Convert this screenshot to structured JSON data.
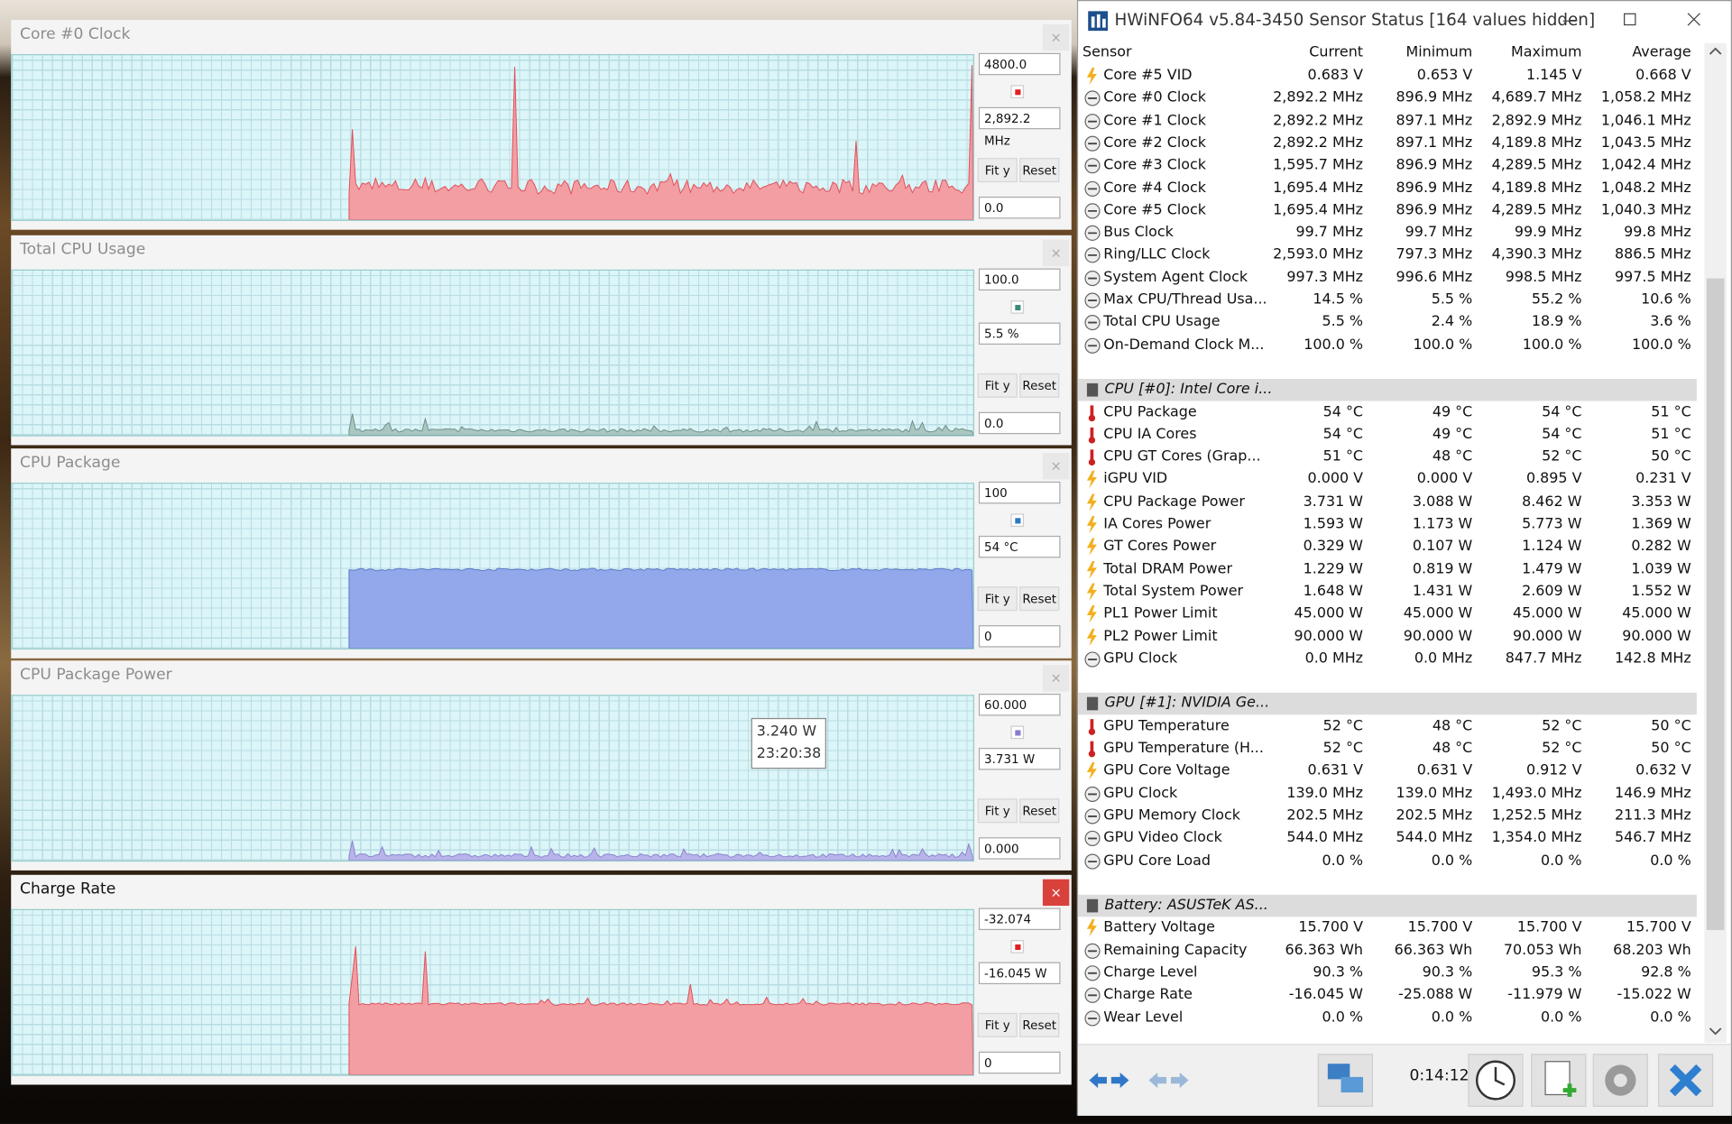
{
  "graphs": [
    {
      "title": "Core #0 Clock",
      "top": "4800.0",
      "current": "2,892.2 MHz",
      "bottom": "0.0",
      "fit": "Fit y",
      "reset": "Reset",
      "close": "×"
    },
    {
      "title": "Total CPU Usage",
      "top": "100.0",
      "current": "5.5 %",
      "bottom": "0.0",
      "fit": "Fit y",
      "reset": "Reset",
      "close": "×"
    },
    {
      "title": "CPU Package",
      "top": "100",
      "current": "54 °C",
      "bottom": "0",
      "fit": "Fit y",
      "reset": "Reset",
      "close": "×"
    },
    {
      "title": "CPU Package Power",
      "top": "60.000",
      "current": "3.731 W",
      "bottom": "0.000",
      "fit": "Fit y",
      "reset": "Reset",
      "close": "×",
      "tooltip": {
        "value": "3.240 W",
        "time": "23:20:38"
      }
    },
    {
      "title": "Charge Rate",
      "top": "-32.074",
      "current": "-16.045 W",
      "bottom": "0",
      "fit": "Fit y",
      "reset": "Reset",
      "close": "×"
    }
  ],
  "sensor_window": {
    "title": "HWiNFO64 v5.84-3450 Sensor Status [164 values hidden]",
    "columns": [
      "Sensor",
      "Current",
      "Minimum",
      "Maximum",
      "Average"
    ],
    "groups": [
      {
        "rows": [
          [
            "Core #5 VID",
            "0.683 V",
            "0.653 V",
            "1.145 V",
            "0.668 V"
          ],
          [
            "Core #0 Clock",
            "2,892.2 MHz",
            "896.9 MHz",
            "4,689.7 MHz",
            "1,058.2 MHz"
          ],
          [
            "Core #1 Clock",
            "2,892.2 MHz",
            "897.1 MHz",
            "2,892.9 MHz",
            "1,046.1 MHz"
          ],
          [
            "Core #2 Clock",
            "2,892.2 MHz",
            "897.1 MHz",
            "4,189.8 MHz",
            "1,043.5 MHz"
          ],
          [
            "Core #3 Clock",
            "1,595.7 MHz",
            "896.9 MHz",
            "4,289.5 MHz",
            "1,042.4 MHz"
          ],
          [
            "Core #4 Clock",
            "1,695.4 MHz",
            "896.9 MHz",
            "4,189.8 MHz",
            "1,048.2 MHz"
          ],
          [
            "Core #5 Clock",
            "1,695.4 MHz",
            "896.9 MHz",
            "4,289.5 MHz",
            "1,040.3 MHz"
          ],
          [
            "Bus Clock",
            "99.7 MHz",
            "99.7 MHz",
            "99.9 MHz",
            "99.8 MHz"
          ],
          [
            "Ring/LLC Clock",
            "2,593.0 MHz",
            "797.3 MHz",
            "4,390.3 MHz",
            "886.5 MHz"
          ],
          [
            "System Agent Clock",
            "997.3 MHz",
            "996.6 MHz",
            "998.5 MHz",
            "997.5 MHz"
          ],
          [
            "Max CPU/Thread Usa...",
            "14.5 %",
            "5.5 %",
            "55.2 %",
            "10.6 %"
          ],
          [
            "Total CPU Usage",
            "5.5 %",
            "2.4 %",
            "18.9 %",
            "3.6 %"
          ],
          [
            "On-Demand Clock M...",
            "100.0 %",
            "100.0 %",
            "100.0 %",
            "100.0 %"
          ]
        ]
      },
      {
        "header": "CPU [#0]: Intel Core i...",
        "rows": [
          [
            "CPU Package",
            "54 °C",
            "49 °C",
            "54 °C",
            "51 °C"
          ],
          [
            "CPU IA Cores",
            "54 °C",
            "49 °C",
            "54 °C",
            "51 °C"
          ],
          [
            "CPU GT Cores (Grap...",
            "51 °C",
            "48 °C",
            "52 °C",
            "50 °C"
          ],
          [
            "iGPU VID",
            "0.000 V",
            "0.000 V",
            "0.895 V",
            "0.231 V"
          ],
          [
            "CPU Package Power",
            "3.731 W",
            "3.088 W",
            "8.462 W",
            "3.353 W"
          ],
          [
            "IA Cores Power",
            "1.593 W",
            "1.173 W",
            "5.773 W",
            "1.369 W"
          ],
          [
            "GT Cores Power",
            "0.329 W",
            "0.107 W",
            "1.124 W",
            "0.282 W"
          ],
          [
            "Total DRAM Power",
            "1.229 W",
            "0.819 W",
            "1.479 W",
            "1.039 W"
          ],
          [
            "Total System Power",
            "1.648 W",
            "1.431 W",
            "2.609 W",
            "1.552 W"
          ],
          [
            "PL1 Power Limit",
            "45.000 W",
            "45.000 W",
            "45.000 W",
            "45.000 W"
          ],
          [
            "PL2 Power Limit",
            "90.000 W",
            "90.000 W",
            "90.000 W",
            "90.000 W"
          ],
          [
            "GPU Clock",
            "0.0 MHz",
            "0.0 MHz",
            "847.7 MHz",
            "142.8 MHz"
          ]
        ]
      },
      {
        "header": "GPU [#1]: NVIDIA Ge...",
        "rows": [
          [
            "GPU Temperature",
            "52 °C",
            "48 °C",
            "52 °C",
            "50 °C"
          ],
          [
            "GPU Temperature (H...",
            "52 °C",
            "48 °C",
            "52 °C",
            "50 °C"
          ],
          [
            "GPU Core Voltage",
            "0.631 V",
            "0.631 V",
            "0.912 V",
            "0.632 V"
          ],
          [
            "GPU Clock",
            "139.0 MHz",
            "139.0 MHz",
            "1,493.0 MHz",
            "146.9 MHz"
          ],
          [
            "GPU Memory Clock",
            "202.5 MHz",
            "202.5 MHz",
            "1,252.5 MHz",
            "211.3 MHz"
          ],
          [
            "GPU Video Clock",
            "544.0 MHz",
            "544.0 MHz",
            "1,354.0 MHz",
            "546.7 MHz"
          ],
          [
            "GPU Core Load",
            "0.0 %",
            "0.0 %",
            "0.0 %",
            "0.0 %"
          ]
        ]
      },
      {
        "header": "Battery: ASUSTeK AS...",
        "rows": [
          [
            "Battery Voltage",
            "15.700 V",
            "15.700 V",
            "15.700 V",
            "15.700 V"
          ],
          [
            "Remaining Capacity",
            "66.363 Wh",
            "66.363 Wh",
            "70.053 Wh",
            "68.203 Wh"
          ],
          [
            "Charge Level",
            "90.3 %",
            "90.3 %",
            "95.3 %",
            "92.8 %"
          ],
          [
            "Charge Rate",
            "-16.045 W",
            "-25.088 W",
            "-11.979 W",
            "-15.022 W"
          ],
          [
            "Wear Level",
            "0.0 %",
            "0.0 %",
            "0.0 %",
            "0.0 %"
          ]
        ]
      }
    ],
    "elapsed": "0:14:12"
  }
}
